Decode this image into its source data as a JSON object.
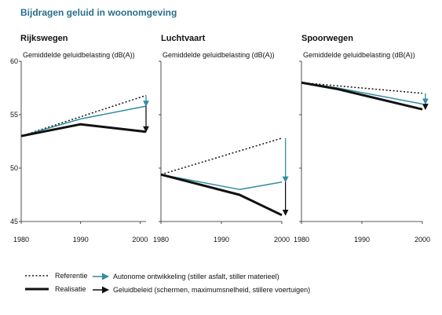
{
  "title": "Bijdragen geluid in woonomgeving",
  "subtitle": "Gemiddelde geluidbelasting (dB(A))",
  "colors": {
    "referentie": "#111111",
    "realisatie": "#111111",
    "autonome": "#2f8ea3",
    "title": "#2a6f8a"
  },
  "legend": {
    "referentie": "Referentie",
    "realisatie": "Realisatie",
    "autonome": "Autonome ontwikkeling (stiller asfalt, stiller materieel)",
    "geluidbeleid": "Geluidbeleid (schermen, maximumsnelheid, stillere voertuigen)"
  },
  "chart_data": [
    {
      "type": "line",
      "title": "Rijkswegen",
      "ylabel": "Gemiddelde geluidbelasting (dB(A))",
      "ylim": [
        45,
        60
      ],
      "yticks": [
        45,
        50,
        55,
        60
      ],
      "xlim": [
        1980,
        2001
      ],
      "xticks": [
        1980,
        1990,
        2000
      ],
      "series": [
        {
          "name": "Referentie",
          "x": [
            1980,
            2001
          ],
          "y": [
            53,
            56.8
          ]
        },
        {
          "name": "Autonome ontwikkeling",
          "x": [
            1980,
            1990,
            2001
          ],
          "y": [
            53,
            54.6,
            55.8
          ]
        },
        {
          "name": "Realisatie",
          "x": [
            1980,
            1990,
            2001
          ],
          "y": [
            53,
            54.1,
            53.4
          ]
        }
      ],
      "arrows": [
        {
          "name": "Autonome ontwikkeling",
          "x": 2001,
          "from": 56.8,
          "to": 55.8
        },
        {
          "name": "Geluidbeleid",
          "x": 2001,
          "from": 55.8,
          "to": 53.4
        }
      ]
    },
    {
      "type": "line",
      "title": "Luchtvaart",
      "ylabel": "Gemiddelde geluidbelasting (dB(A))",
      "ylim": [
        45,
        60
      ],
      "xlim": [
        1980,
        2000
      ],
      "xticks": [
        1980,
        1990,
        2000
      ],
      "series": [
        {
          "name": "Referentie",
          "x": [
            1980,
            2000
          ],
          "y": [
            49.4,
            52.8
          ]
        },
        {
          "name": "Autonome ontwikkeling",
          "x": [
            1980,
            1993,
            2000
          ],
          "y": [
            49.4,
            48.0,
            48.7
          ]
        },
        {
          "name": "Realisatie",
          "x": [
            1980,
            1993,
            2000
          ],
          "y": [
            49.4,
            47.5,
            45.6
          ]
        }
      ],
      "arrows": [
        {
          "name": "Autonome ontwikkeling",
          "x": 2000.6,
          "from": 52.8,
          "to": 48.7
        },
        {
          "name": "Geluidbeleid",
          "x": 2000.6,
          "from": 48.7,
          "to": 45.6
        }
      ]
    },
    {
      "type": "line",
      "title": "Spoorwegen",
      "ylabel": "Gemiddelde geluidbelasting (dB(A))",
      "ylim": [
        45,
        60
      ],
      "xlim": [
        1980,
        2000
      ],
      "xticks": [
        1980,
        1990,
        2000
      ],
      "series": [
        {
          "name": "Referentie",
          "x": [
            1980,
            2000
          ],
          "y": [
            58,
            57
          ]
        },
        {
          "name": "Autonome ontwikkeling",
          "x": [
            1980,
            1986,
            2000
          ],
          "y": [
            58,
            57.5,
            56
          ]
        },
        {
          "name": "Realisatie",
          "x": [
            1980,
            1986,
            2000
          ],
          "y": [
            58,
            57.4,
            55.5
          ]
        }
      ],
      "arrows": [
        {
          "name": "Autonome ontwikkeling",
          "x": 2000.5,
          "from": 57,
          "to": 56
        },
        {
          "name": "Geluidbeleid",
          "x": 2000.5,
          "from": 56,
          "to": 55.5
        }
      ]
    }
  ]
}
